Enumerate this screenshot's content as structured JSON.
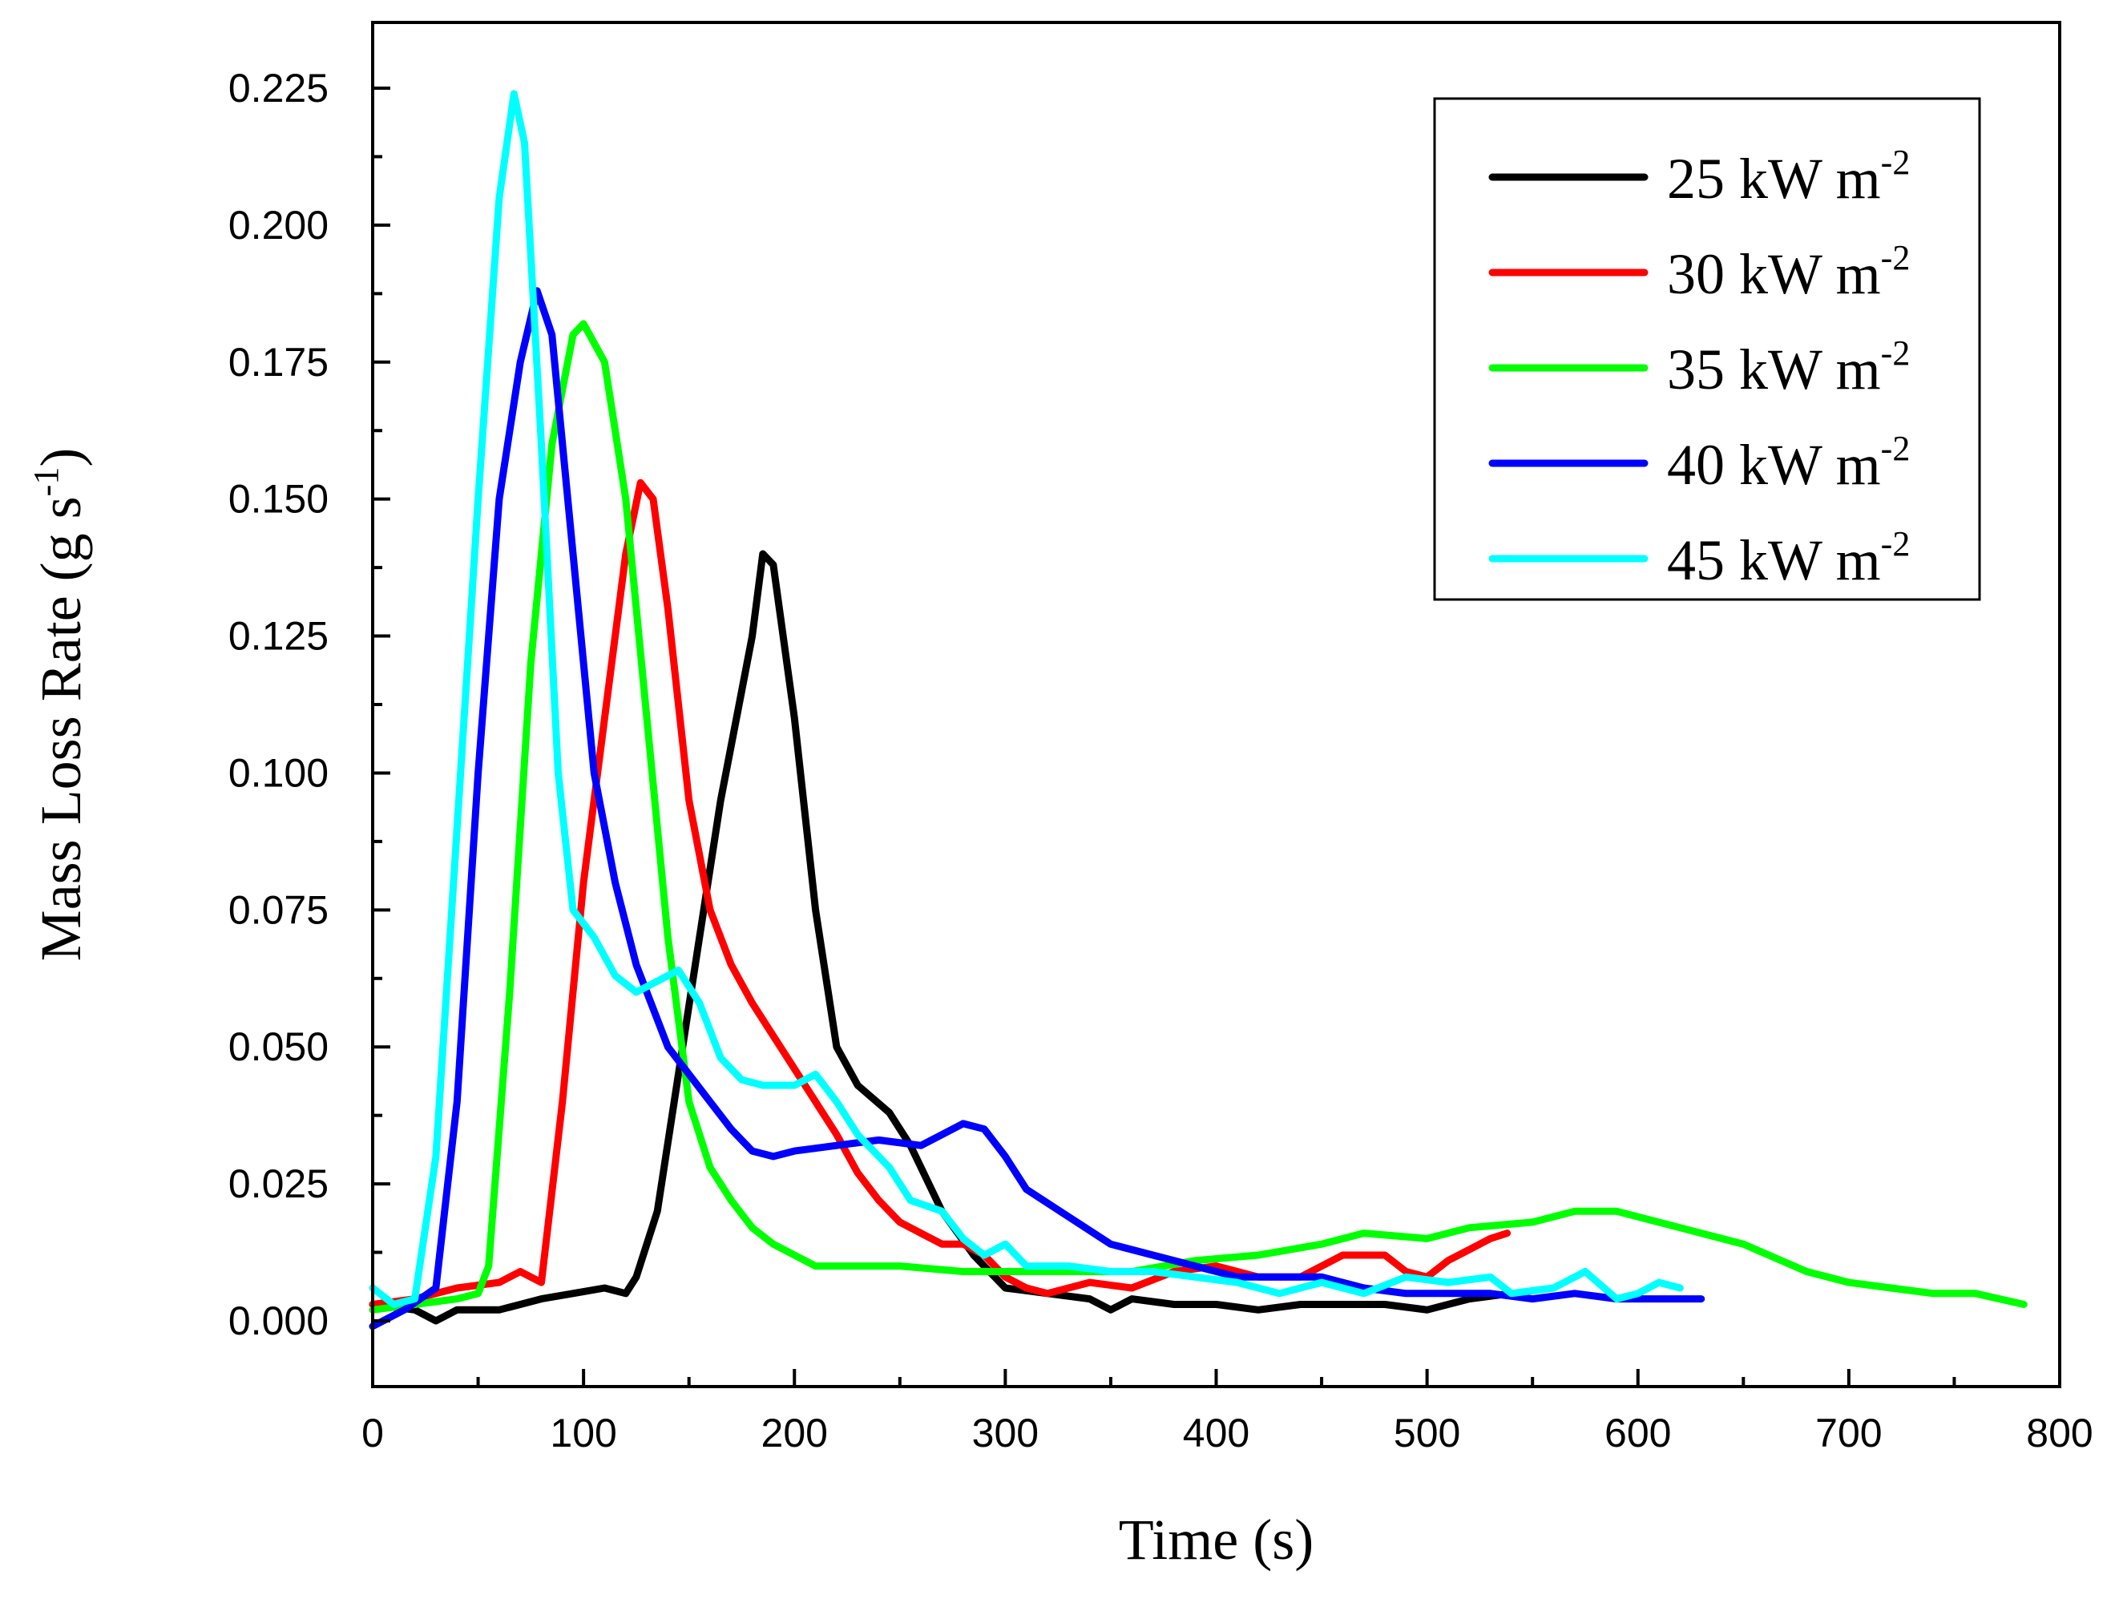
{
  "chart_data": {
    "type": "line",
    "title": "",
    "xlabel": "Time (s)",
    "ylabel": {
      "main": "Mass Loss Rate (g s",
      "sup": "-1",
      "close": ")"
    },
    "xlim": [
      0,
      800
    ],
    "ylim": [
      -0.012,
      0.237
    ],
    "xticks": [
      0,
      100,
      200,
      300,
      400,
      500,
      600,
      700,
      800
    ],
    "xtick_labels": [
      "0",
      "100",
      "200",
      "300",
      "400",
      "500",
      "600",
      "700",
      "800"
    ],
    "yticks": [
      0,
      0.025,
      0.05,
      0.075,
      0.1,
      0.125,
      0.15,
      0.175,
      0.2,
      0.225
    ],
    "ytick_labels": [
      "0.000",
      "0.025",
      "0.050",
      "0.075",
      "0.100",
      "0.125",
      "0.150",
      "0.175",
      "0.200",
      "0.225"
    ],
    "grid": false,
    "legend_position": "top-right",
    "series": [
      {
        "name": "25 kW m-2",
        "label_main": "25 kW m",
        "label_sup": "-2",
        "color": "#000000",
        "points": [
          [
            0,
            0.003
          ],
          [
            20,
            0.002
          ],
          [
            30,
            0.0
          ],
          [
            40,
            0.002
          ],
          [
            50,
            0.002
          ],
          [
            60,
            0.002
          ],
          [
            70,
            0.003
          ],
          [
            80,
            0.004
          ],
          [
            95,
            0.005
          ],
          [
            110,
            0.006
          ],
          [
            120,
            0.005
          ],
          [
            125,
            0.008
          ],
          [
            135,
            0.02
          ],
          [
            145,
            0.045
          ],
          [
            155,
            0.07
          ],
          [
            165,
            0.095
          ],
          [
            175,
            0.115
          ],
          [
            180,
            0.125
          ],
          [
            185,
            0.14
          ],
          [
            190,
            0.138
          ],
          [
            200,
            0.11
          ],
          [
            210,
            0.075
          ],
          [
            220,
            0.05
          ],
          [
            230,
            0.043
          ],
          [
            245,
            0.038
          ],
          [
            255,
            0.032
          ],
          [
            270,
            0.02
          ],
          [
            285,
            0.012
          ],
          [
            300,
            0.006
          ],
          [
            320,
            0.005
          ],
          [
            340,
            0.004
          ],
          [
            350,
            0.002
          ],
          [
            360,
            0.004
          ],
          [
            380,
            0.003
          ],
          [
            400,
            0.003
          ],
          [
            420,
            0.002
          ],
          [
            440,
            0.003
          ],
          [
            460,
            0.003
          ],
          [
            480,
            0.003
          ],
          [
            500,
            0.002
          ],
          [
            520,
            0.004
          ],
          [
            540,
            0.005
          ]
        ]
      },
      {
        "name": "30 kW m-2",
        "label_main": "30 kW m",
        "label_sup": "-2",
        "color": "#ff0000",
        "points": [
          [
            0,
            0.003
          ],
          [
            20,
            0.004
          ],
          [
            40,
            0.006
          ],
          [
            60,
            0.007
          ],
          [
            70,
            0.009
          ],
          [
            80,
            0.007
          ],
          [
            90,
            0.04
          ],
          [
            100,
            0.08
          ],
          [
            110,
            0.11
          ],
          [
            120,
            0.14
          ],
          [
            127,
            0.153
          ],
          [
            133,
            0.15
          ],
          [
            140,
            0.13
          ],
          [
            150,
            0.095
          ],
          [
            160,
            0.075
          ],
          [
            170,
            0.065
          ],
          [
            180,
            0.058
          ],
          [
            190,
            0.052
          ],
          [
            200,
            0.046
          ],
          [
            210,
            0.04
          ],
          [
            220,
            0.034
          ],
          [
            230,
            0.027
          ],
          [
            240,
            0.022
          ],
          [
            250,
            0.018
          ],
          [
            260,
            0.016
          ],
          [
            270,
            0.014
          ],
          [
            280,
            0.014
          ],
          [
            290,
            0.012
          ],
          [
            300,
            0.008
          ],
          [
            310,
            0.006
          ],
          [
            320,
            0.005
          ],
          [
            340,
            0.007
          ],
          [
            360,
            0.006
          ],
          [
            380,
            0.009
          ],
          [
            400,
            0.01
          ],
          [
            420,
            0.008
          ],
          [
            440,
            0.008
          ],
          [
            460,
            0.012
          ],
          [
            480,
            0.012
          ],
          [
            490,
            0.009
          ],
          [
            500,
            0.008
          ],
          [
            510,
            0.011
          ],
          [
            520,
            0.013
          ],
          [
            530,
            0.015
          ],
          [
            538,
            0.016
          ]
        ]
      },
      {
        "name": "35 kW m-2",
        "label_main": "35 kW m",
        "label_sup": "-2",
        "color": "#00ff00",
        "points": [
          [
            0,
            0.002
          ],
          [
            20,
            0.003
          ],
          [
            40,
            0.004
          ],
          [
            50,
            0.005
          ],
          [
            55,
            0.01
          ],
          [
            65,
            0.06
          ],
          [
            75,
            0.12
          ],
          [
            85,
            0.16
          ],
          [
            95,
            0.18
          ],
          [
            100,
            0.182
          ],
          [
            110,
            0.175
          ],
          [
            120,
            0.15
          ],
          [
            130,
            0.11
          ],
          [
            140,
            0.07
          ],
          [
            150,
            0.04
          ],
          [
            160,
            0.028
          ],
          [
            170,
            0.022
          ],
          [
            180,
            0.017
          ],
          [
            190,
            0.014
          ],
          [
            200,
            0.012
          ],
          [
            210,
            0.01
          ],
          [
            230,
            0.01
          ],
          [
            250,
            0.01
          ],
          [
            280,
            0.009
          ],
          [
            300,
            0.009
          ],
          [
            330,
            0.009
          ],
          [
            360,
            0.009
          ],
          [
            390,
            0.011
          ],
          [
            420,
            0.012
          ],
          [
            450,
            0.014
          ],
          [
            470,
            0.016
          ],
          [
            500,
            0.015
          ],
          [
            520,
            0.017
          ],
          [
            550,
            0.018
          ],
          [
            570,
            0.02
          ],
          [
            590,
            0.02
          ],
          [
            620,
            0.017
          ],
          [
            650,
            0.014
          ],
          [
            680,
            0.009
          ],
          [
            700,
            0.007
          ],
          [
            720,
            0.006
          ],
          [
            740,
            0.005
          ],
          [
            760,
            0.005
          ],
          [
            783,
            0.003
          ]
        ]
      },
      {
        "name": "40 kW m-2",
        "label_main": "40 kW m",
        "label_sup": "-2",
        "color": "#0000ff",
        "points": [
          [
            0,
            -0.001
          ],
          [
            15,
            0.002
          ],
          [
            30,
            0.006
          ],
          [
            40,
            0.04
          ],
          [
            50,
            0.1
          ],
          [
            60,
            0.15
          ],
          [
            70,
            0.175
          ],
          [
            78,
            0.188
          ],
          [
            85,
            0.18
          ],
          [
            95,
            0.14
          ],
          [
            105,
            0.1
          ],
          [
            115,
            0.08
          ],
          [
            125,
            0.065
          ],
          [
            140,
            0.05
          ],
          [
            150,
            0.045
          ],
          [
            160,
            0.04
          ],
          [
            170,
            0.035
          ],
          [
            180,
            0.031
          ],
          [
            190,
            0.03
          ],
          [
            200,
            0.031
          ],
          [
            220,
            0.032
          ],
          [
            240,
            0.033
          ],
          [
            260,
            0.032
          ],
          [
            270,
            0.034
          ],
          [
            280,
            0.036
          ],
          [
            290,
            0.035
          ],
          [
            300,
            0.03
          ],
          [
            310,
            0.024
          ],
          [
            330,
            0.019
          ],
          [
            350,
            0.014
          ],
          [
            370,
            0.012
          ],
          [
            390,
            0.01
          ],
          [
            410,
            0.008
          ],
          [
            430,
            0.008
          ],
          [
            450,
            0.008
          ],
          [
            470,
            0.006
          ],
          [
            490,
            0.005
          ],
          [
            510,
            0.005
          ],
          [
            530,
            0.005
          ],
          [
            550,
            0.004
          ],
          [
            570,
            0.005
          ],
          [
            590,
            0.004
          ],
          [
            610,
            0.004
          ],
          [
            630,
            0.004
          ]
        ]
      },
      {
        "name": "45 kW m-2",
        "label_main": "45 kW m",
        "label_sup": "-2",
        "color": "#00ffff",
        "points": [
          [
            0,
            0.006
          ],
          [
            10,
            0.003
          ],
          [
            20,
            0.004
          ],
          [
            30,
            0.03
          ],
          [
            40,
            0.09
          ],
          [
            50,
            0.15
          ],
          [
            60,
            0.205
          ],
          [
            67,
            0.224
          ],
          [
            72,
            0.215
          ],
          [
            80,
            0.16
          ],
          [
            88,
            0.1
          ],
          [
            95,
            0.075
          ],
          [
            105,
            0.07
          ],
          [
            115,
            0.063
          ],
          [
            125,
            0.06
          ],
          [
            135,
            0.062
          ],
          [
            145,
            0.064
          ],
          [
            155,
            0.058
          ],
          [
            165,
            0.048
          ],
          [
            175,
            0.044
          ],
          [
            185,
            0.043
          ],
          [
            200,
            0.043
          ],
          [
            210,
            0.045
          ],
          [
            220,
            0.04
          ],
          [
            230,
            0.034
          ],
          [
            245,
            0.028
          ],
          [
            255,
            0.022
          ],
          [
            270,
            0.02
          ],
          [
            280,
            0.015
          ],
          [
            290,
            0.012
          ],
          [
            300,
            0.014
          ],
          [
            310,
            0.01
          ],
          [
            330,
            0.01
          ],
          [
            350,
            0.009
          ],
          [
            370,
            0.009
          ],
          [
            390,
            0.008
          ],
          [
            410,
            0.007
          ],
          [
            430,
            0.005
          ],
          [
            450,
            0.007
          ],
          [
            470,
            0.005
          ],
          [
            490,
            0.008
          ],
          [
            510,
            0.007
          ],
          [
            530,
            0.008
          ],
          [
            540,
            0.005
          ],
          [
            560,
            0.006
          ],
          [
            575,
            0.009
          ],
          [
            590,
            0.004
          ],
          [
            600,
            0.005
          ],
          [
            610,
            0.007
          ],
          [
            620,
            0.006
          ]
        ]
      }
    ]
  }
}
